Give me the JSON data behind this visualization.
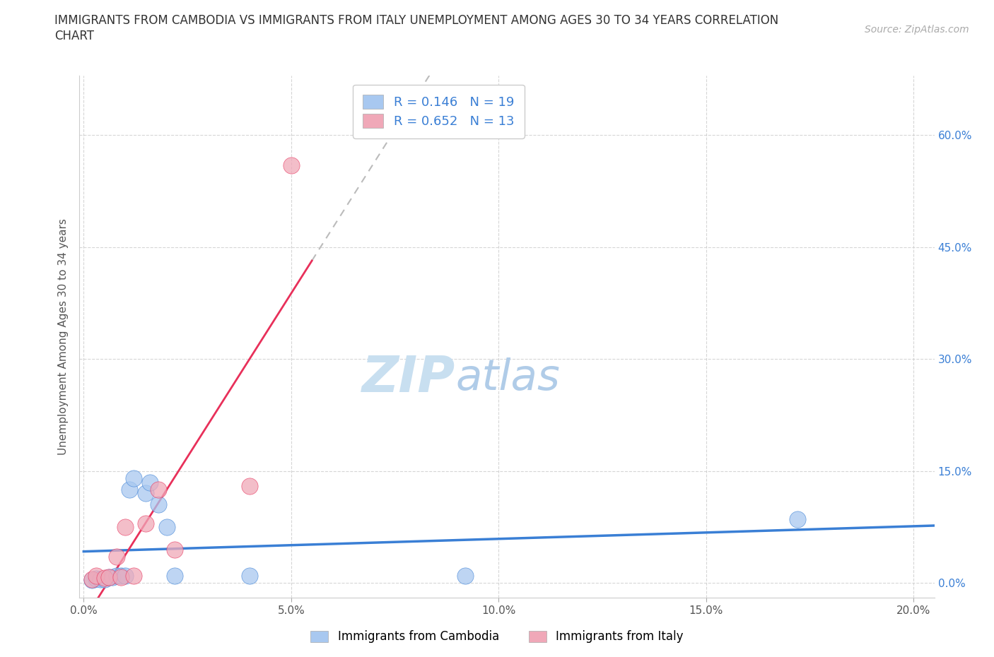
{
  "title_line1": "IMMIGRANTS FROM CAMBODIA VS IMMIGRANTS FROM ITALY UNEMPLOYMENT AMONG AGES 30 TO 34 YEARS CORRELATION",
  "title_line2": "CHART",
  "source_text": "Source: ZipAtlas.com",
  "ylabel": "Unemployment Among Ages 30 to 34 years",
  "legend_label_1": "Immigrants from Cambodia",
  "legend_label_2": "Immigrants from Italy",
  "R1": "0.146",
  "N1": "19",
  "R2": "0.652",
  "N2": "13",
  "color1": "#a8c8f0",
  "color2": "#f0a8b8",
  "line_color1": "#3a7fd5",
  "line_color2": "#e8305a",
  "dash_color": "#bbbbbb",
  "tick_color": "#3a7fd5",
  "xlim": [
    -0.001,
    0.205
  ],
  "ylim": [
    -0.02,
    0.68
  ],
  "xticks": [
    0.0,
    0.05,
    0.1,
    0.15,
    0.2
  ],
  "yticks": [
    0.0,
    0.15,
    0.3,
    0.45,
    0.6
  ],
  "watermark_zip": "ZIP",
  "watermark_atlas": "atlas",
  "scatter_cambodia_x": [
    0.002,
    0.003,
    0.004,
    0.005,
    0.006,
    0.007,
    0.008,
    0.009,
    0.01,
    0.011,
    0.012,
    0.015,
    0.016,
    0.018,
    0.02,
    0.022,
    0.04,
    0.092,
    0.172
  ],
  "scatter_cambodia_y": [
    0.004,
    0.006,
    0.005,
    0.005,
    0.008,
    0.008,
    0.01,
    0.01,
    0.01,
    0.125,
    0.14,
    0.12,
    0.135,
    0.105,
    0.075,
    0.01,
    0.01,
    0.01,
    0.085
  ],
  "scatter_italy_x": [
    0.002,
    0.003,
    0.005,
    0.006,
    0.008,
    0.009,
    0.01,
    0.012,
    0.015,
    0.018,
    0.022,
    0.04,
    0.05
  ],
  "scatter_italy_y": [
    0.005,
    0.01,
    0.007,
    0.008,
    0.035,
    0.008,
    0.075,
    0.01,
    0.08,
    0.125,
    0.045,
    0.13,
    0.56
  ],
  "title_fontsize": 12,
  "label_fontsize": 11,
  "tick_fontsize": 11,
  "source_fontsize": 10,
  "watermark_fontsize_zip": 52,
  "watermark_fontsize_atlas": 44,
  "watermark_color_zip": "#c8dff0",
  "watermark_color_atlas": "#b0cce8",
  "background_color": "#ffffff",
  "grid_color": "#cccccc"
}
